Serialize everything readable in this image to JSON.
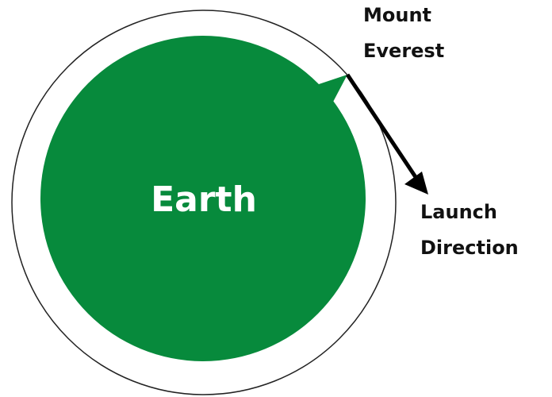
{
  "earth_label": "Earth",
  "mountain_label": {
    "lines": [
      "Mount",
      "Everest"
    ]
  },
  "launch_label": {
    "lines": [
      "Launch",
      "Direction"
    ]
  }
}
